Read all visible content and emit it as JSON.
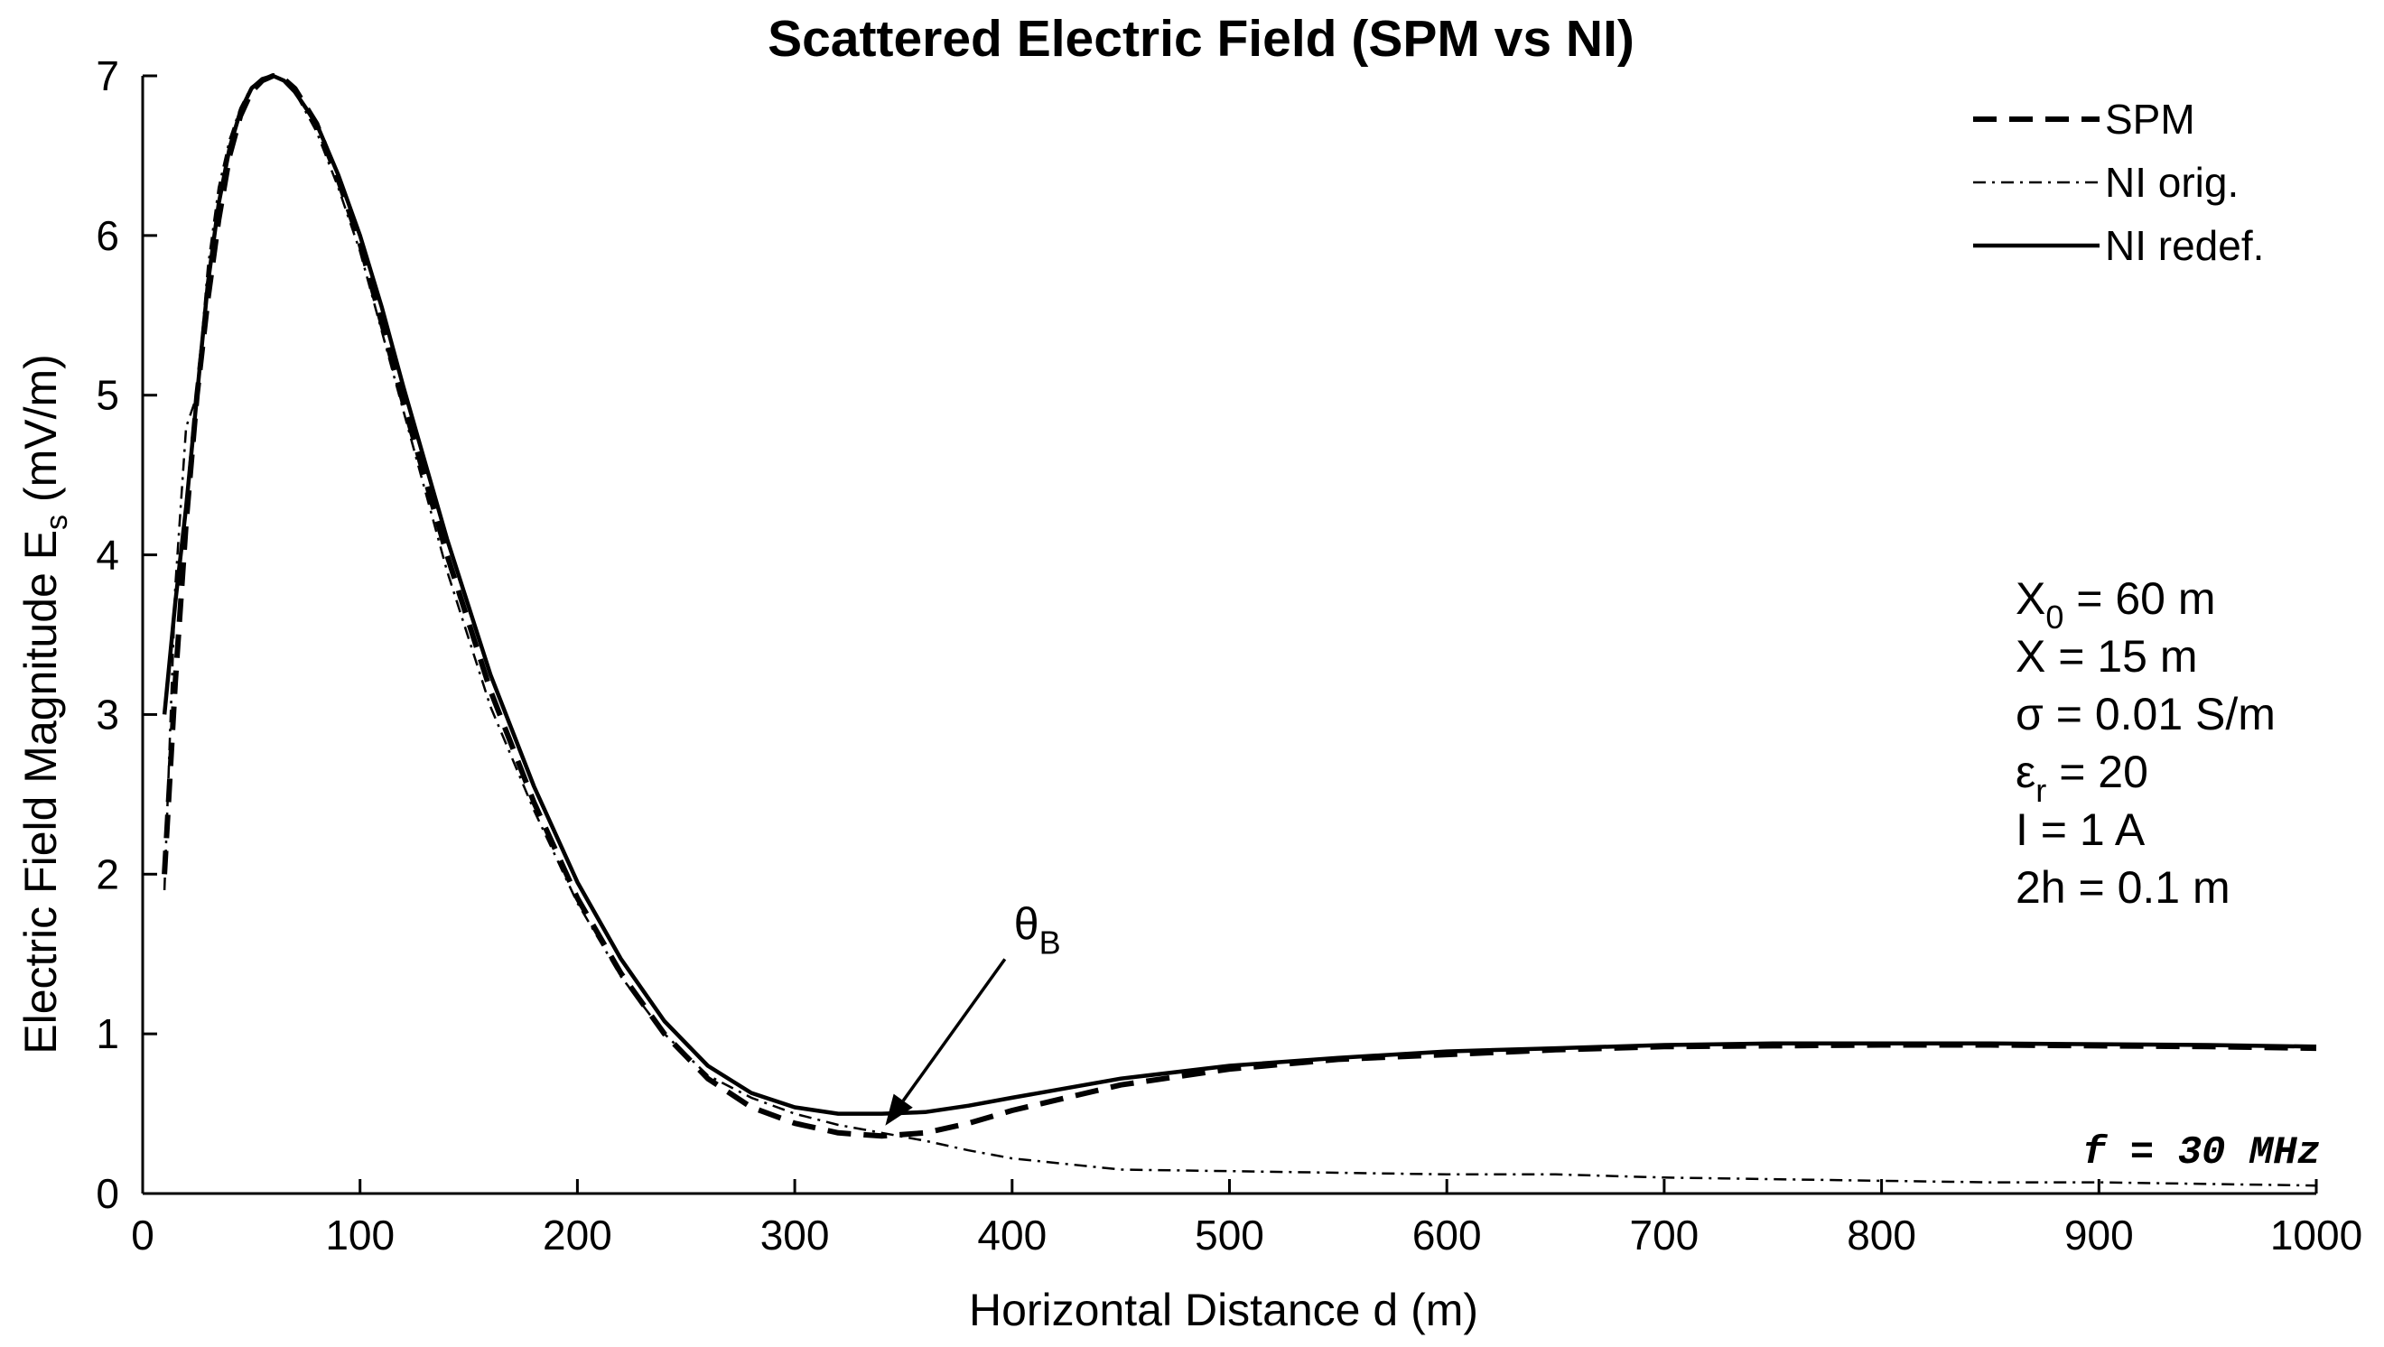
{
  "chart_data": {
    "type": "line",
    "title": "Scattered Electric Field (SPM vs NI)",
    "xlabel": "Horizontal Distance  d (m)",
    "ylabel_main": "Electric Field Magnitude  E",
    "ylabel_sub": "s",
    "ylabel_unit": " (mV/m)",
    "xlim": [
      0,
      1000
    ],
    "ylim": [
      0,
      7
    ],
    "xticks": [
      "0",
      "100",
      "200",
      "300",
      "400",
      "500",
      "600",
      "700",
      "800",
      "900",
      "1000"
    ],
    "yticks": [
      "0",
      "1",
      "2",
      "3",
      "4",
      "5",
      "6",
      "7"
    ],
    "grid": false,
    "legend_position": "top-right",
    "series": [
      {
        "name": "SPM",
        "style": "dashed",
        "x": [
          10,
          15,
          20,
          25,
          30,
          35,
          40,
          45,
          50,
          55,
          60,
          65,
          70,
          80,
          90,
          100,
          110,
          120,
          140,
          160,
          180,
          200,
          220,
          240,
          260,
          280,
          300,
          320,
          340,
          360,
          380,
          400,
          450,
          500,
          550,
          600,
          650,
          700,
          750,
          800,
          850,
          900,
          950,
          1000
        ],
        "y": [
          2.0,
          3.2,
          4.2,
          5.0,
          5.6,
          6.1,
          6.5,
          6.75,
          6.9,
          6.97,
          7.0,
          6.98,
          6.92,
          6.7,
          6.35,
          5.95,
          5.45,
          4.95,
          4.0,
          3.15,
          2.45,
          1.85,
          1.38,
          1.0,
          0.72,
          0.54,
          0.44,
          0.38,
          0.36,
          0.38,
          0.44,
          0.52,
          0.68,
          0.78,
          0.84,
          0.87,
          0.9,
          0.92,
          0.925,
          0.93,
          0.93,
          0.925,
          0.92,
          0.91
        ]
      },
      {
        "name": "NI orig.",
        "style": "dashdot",
        "x": [
          10,
          15,
          20,
          25,
          30,
          35,
          40,
          45,
          50,
          55,
          60,
          65,
          70,
          80,
          90,
          100,
          110,
          120,
          140,
          160,
          180,
          200,
          220,
          240,
          260,
          280,
          300,
          320,
          340,
          360,
          380,
          400,
          450,
          500,
          550,
          600,
          650,
          700,
          750,
          800,
          850,
          900,
          950,
          1000
        ],
        "y": [
          1.9,
          3.8,
          4.8,
          5.0,
          5.8,
          6.3,
          6.6,
          6.8,
          6.93,
          6.98,
          7.0,
          6.97,
          6.9,
          6.65,
          6.3,
          5.9,
          5.4,
          4.9,
          3.9,
          3.05,
          2.4,
          1.82,
          1.36,
          1.0,
          0.74,
          0.6,
          0.5,
          0.43,
          0.38,
          0.33,
          0.27,
          0.22,
          0.15,
          0.14,
          0.13,
          0.12,
          0.12,
          0.1,
          0.09,
          0.08,
          0.07,
          0.07,
          0.06,
          0.05
        ]
      },
      {
        "name": "NI redef.",
        "style": "solid",
        "x": [
          10,
          15,
          20,
          25,
          30,
          35,
          40,
          45,
          50,
          55,
          60,
          65,
          70,
          80,
          90,
          100,
          110,
          120,
          140,
          160,
          180,
          200,
          220,
          240,
          260,
          280,
          300,
          320,
          340,
          360,
          380,
          400,
          450,
          500,
          550,
          600,
          650,
          700,
          750,
          800,
          850,
          900,
          950,
          1000
        ],
        "y": [
          3.0,
          3.7,
          4.3,
          5.0,
          5.7,
          6.2,
          6.55,
          6.78,
          6.92,
          6.98,
          7.0,
          6.97,
          6.9,
          6.7,
          6.38,
          6.0,
          5.55,
          5.05,
          4.1,
          3.25,
          2.55,
          1.95,
          1.47,
          1.08,
          0.8,
          0.63,
          0.54,
          0.5,
          0.5,
          0.51,
          0.55,
          0.6,
          0.72,
          0.8,
          0.85,
          0.89,
          0.91,
          0.93,
          0.94,
          0.94,
          0.94,
          0.935,
          0.93,
          0.92
        ]
      }
    ],
    "annotations": {
      "arrow_label_main": "θ",
      "arrow_label_sub": "B",
      "arrow_start": [
        400,
        1.4
      ],
      "arrow_end": [
        340,
        0.38
      ],
      "params": [
        {
          "main": "X",
          "sub": "0",
          "rest": " = 60 m"
        },
        {
          "main": "X = 15 m",
          "sub": "",
          "rest": ""
        },
        {
          "main": "σ = 0.01 S/m",
          "sub": "",
          "rest": ""
        },
        {
          "main": "ε",
          "sub": "r",
          "rest": " = 20"
        },
        {
          "main": "I = 1 A",
          "sub": "",
          "rest": ""
        },
        {
          "main": "2h = 0.1 m",
          "sub": "",
          "rest": ""
        }
      ],
      "frequency": "f = 30 MHz"
    },
    "colors": {
      "line": "#000000",
      "background": "#ffffff"
    }
  }
}
